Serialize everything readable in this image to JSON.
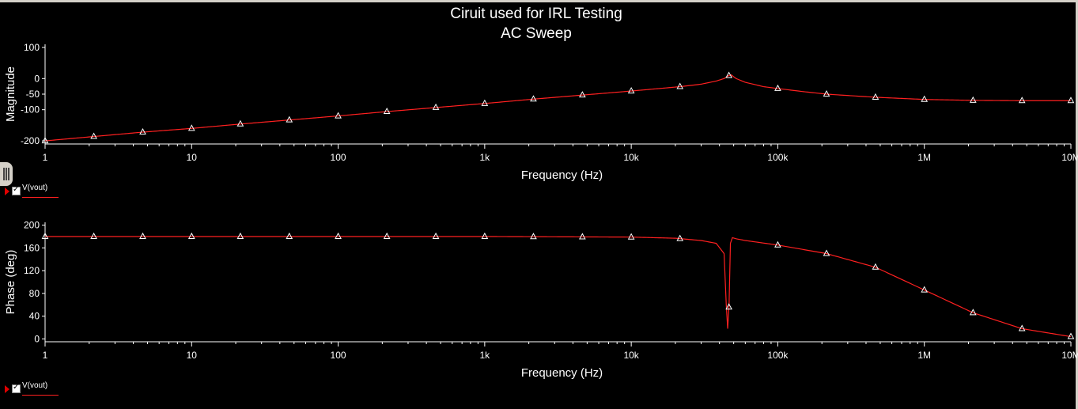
{
  "chart_data": [
    {
      "type": "line",
      "title": "Ciruit used for IRL Testing",
      "subtitle": "AC Sweep",
      "xlabel": "Frequency (Hz)",
      "ylabel": "Magnitude",
      "xscale": "log",
      "xlim": [
        1,
        10000000
      ],
      "ylim": [
        -210,
        110
      ],
      "x_ticks": [
        "1",
        "10",
        "100",
        "1k",
        "10k",
        "100k",
        "1M",
        "10M"
      ],
      "y_ticks": [
        100,
        0,
        -50,
        -100,
        -200
      ],
      "grid": false,
      "legend": "below-left",
      "series": [
        {
          "name": "V(vout)",
          "color": "#ff2020",
          "x": [
            1,
            2.15,
            4.64,
            10,
            21.5,
            46.4,
            100,
            215,
            464,
            1000,
            2150,
            4640,
            10000,
            21500,
            30000,
            38000,
            43000,
            46000,
            48000,
            52000,
            60000,
            80000,
            100000,
            150000,
            215000,
            464000,
            1000000,
            2150000,
            4640000,
            10000000
          ],
          "y": [
            -200,
            -186,
            -172,
            -160,
            -146,
            -133,
            -120,
            -106,
            -93,
            -80,
            -66,
            -53,
            -40,
            -26,
            -18,
            -8,
            0,
            9,
            12,
            0,
            -12,
            -26,
            -32,
            -42,
            -50,
            -60,
            -67,
            -70,
            -71,
            -71
          ]
        }
      ],
      "markers_x": [
        1,
        2.15,
        4.64,
        10,
        21.5,
        46.4,
        100,
        215,
        464,
        1000,
        2150,
        4640,
        10000,
        21500,
        46400,
        100000,
        215000,
        464000,
        1000000,
        2150000,
        4640000,
        10000000
      ]
    },
    {
      "type": "line",
      "xlabel": "Frequency (Hz)",
      "ylabel": "Phase (deg)",
      "xscale": "log",
      "xlim": [
        1,
        10000000
      ],
      "ylim": [
        -5,
        205
      ],
      "x_ticks": [
        "1",
        "10",
        "100",
        "1k",
        "10k",
        "100k",
        "1M",
        "10M"
      ],
      "y_ticks": [
        200,
        160,
        120,
        80,
        40,
        0
      ],
      "grid": false,
      "legend": "below-left",
      "series": [
        {
          "name": "V(vout)",
          "color": "#ff2020",
          "x": [
            1,
            10,
            100,
            1000,
            10000,
            20000,
            30000,
            38000,
            43000,
            44500,
            45500,
            46500,
            47500,
            49000,
            52000,
            60000,
            100000,
            215000,
            464000,
            1000000,
            2150000,
            4640000,
            10000000
          ],
          "y": [
            180,
            180,
            180,
            180,
            179,
            177,
            173,
            168,
            150,
            60,
            18,
            60,
            168,
            178,
            176,
            173,
            165,
            150,
            126,
            86,
            46,
            18,
            4
          ]
        }
      ],
      "markers_x": [
        1,
        2.15,
        4.64,
        10,
        21.5,
        46.4,
        100,
        215,
        464,
        1000,
        2150,
        4640,
        10000,
        21500,
        46400,
        100000,
        215000,
        464000,
        1000000,
        2150000,
        4640000,
        10000000
      ]
    }
  ]
}
